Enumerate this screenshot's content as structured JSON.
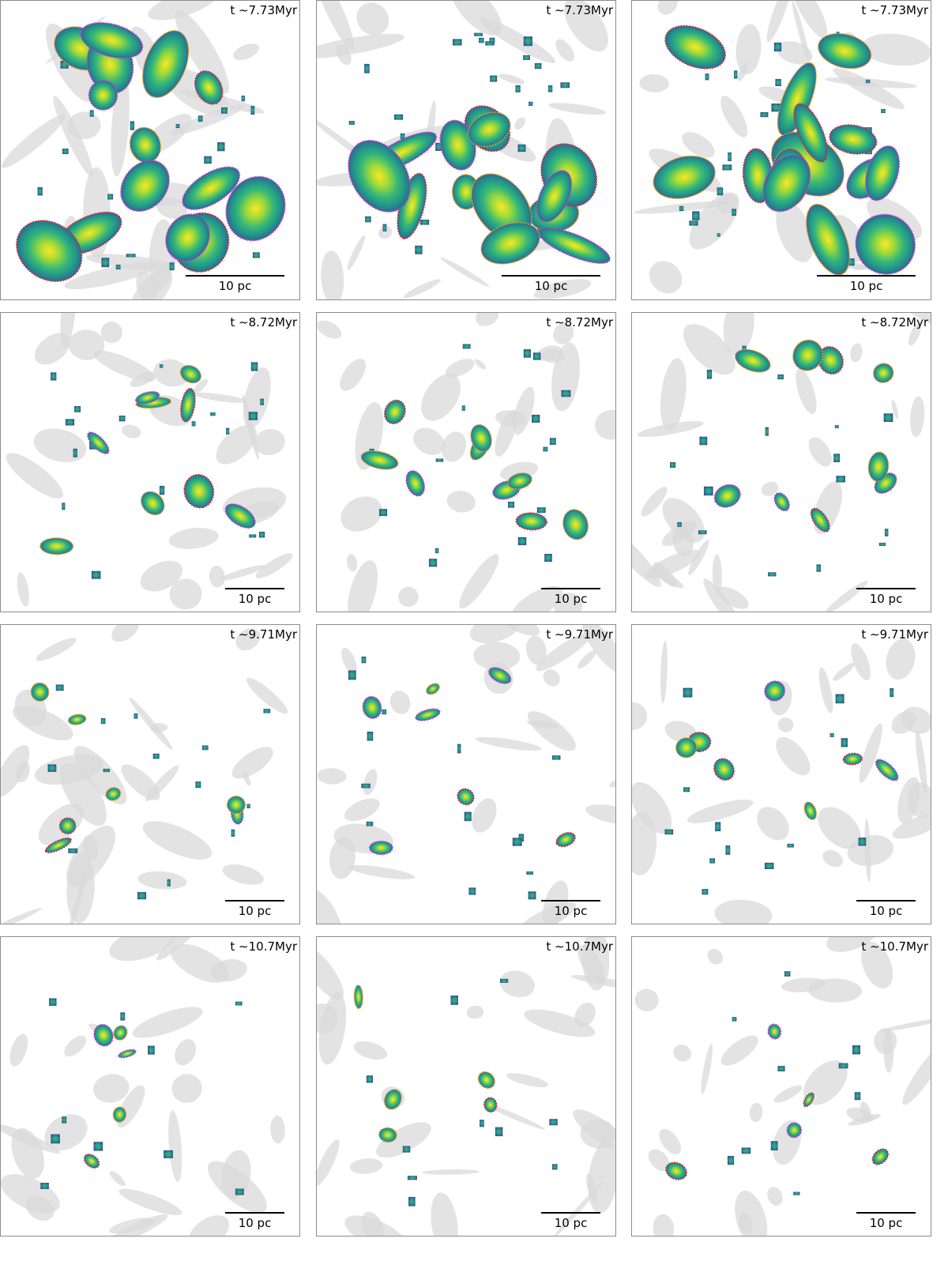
{
  "panels": [
    {
      "time": "t ∼7.73Myr",
      "scale": "10 pc"
    },
    {
      "time": "t ∼7.73Myr",
      "scale": "10 pc"
    },
    {
      "time": "t ∼7.73Myr",
      "scale": "10 pc"
    },
    {
      "time": "t ∼8.72Myr",
      "scale": "10 pc"
    },
    {
      "time": "t ∼8.72Myr",
      "scale": "10 pc"
    },
    {
      "time": "t ∼8.72Myr",
      "scale": "10 pc"
    },
    {
      "time": "t ∼9.71Myr",
      "scale": "10 pc"
    },
    {
      "time": "t ∼9.71Myr",
      "scale": "10 pc"
    },
    {
      "time": "t ∼9.71Myr",
      "scale": "10 pc"
    },
    {
      "time": "t ∼10.7Myr",
      "scale": "10 pc"
    },
    {
      "time": "t ∼10.7Myr",
      "scale": "10 pc"
    },
    {
      "time": "t ∼10.7Myr",
      "scale": "10 pc"
    }
  ]
}
